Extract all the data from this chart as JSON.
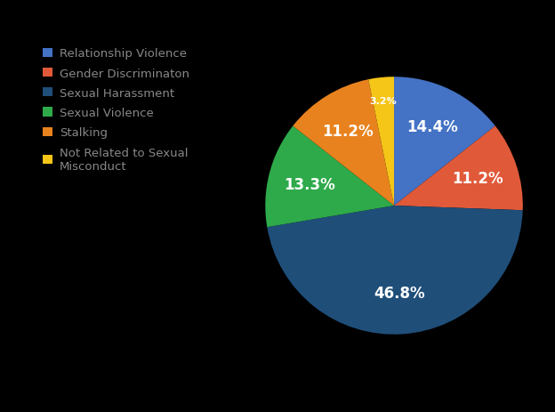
{
  "labels": [
    "Relationship Violence",
    "Gender Discriminaton",
    "Sexual Harassment",
    "Sexual Violence",
    "Stalking",
    "Not Related to Sexual\nMisconduct"
  ],
  "values": [
    14.4,
    11.2,
    46.8,
    13.3,
    11.2,
    3.2
  ],
  "colors": [
    "#4472c4",
    "#e05a3a",
    "#1f4e79",
    "#2eaa4a",
    "#e8821e",
    "#f5c518"
  ],
  "legend_labels": [
    "Relationship Violence",
    "Gender Discriminaton",
    "Sexual Harassment",
    "Sexual Violence",
    "Stalking",
    "Not Related to Sexual\nMisconduct"
  ],
  "pct_labels": [
    "14.4%",
    "11.2%",
    "46.8%",
    "13.3%",
    "11.2%",
    "3.2%"
  ],
  "background_color": "#000000",
  "text_color": "#ffffff",
  "legend_text_color": "#888888",
  "label_fontsize": 12,
  "legend_fontsize": 9.5
}
